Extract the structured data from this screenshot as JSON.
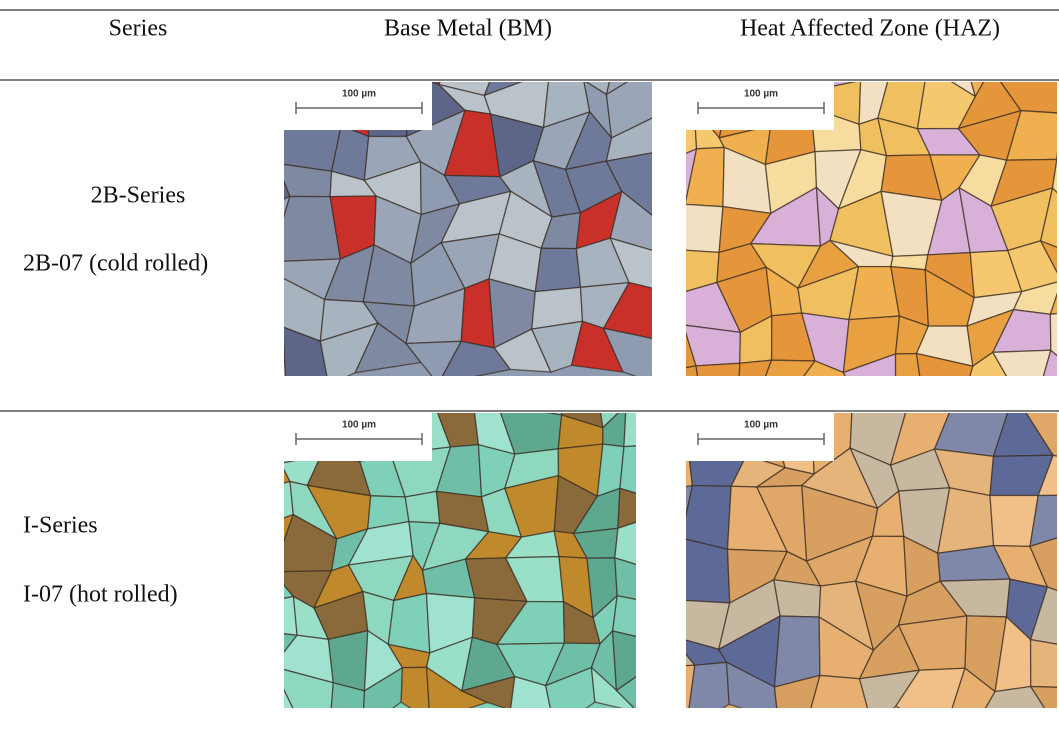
{
  "header": {
    "columns": [
      "Series",
      "Base Metal (BM)",
      "Heat Affected Zone (HAZ)"
    ]
  },
  "rows": [
    {
      "series": "2B-Series",
      "sample": "2B-07 (cold rolled)",
      "bm_scale": "100 µm",
      "haz_scale": "100 µm"
    },
    {
      "series": "I-Series",
      "sample": "I-07 (hot rolled)",
      "bm_scale": "100 µm",
      "haz_scale": "100 µm"
    }
  ]
}
